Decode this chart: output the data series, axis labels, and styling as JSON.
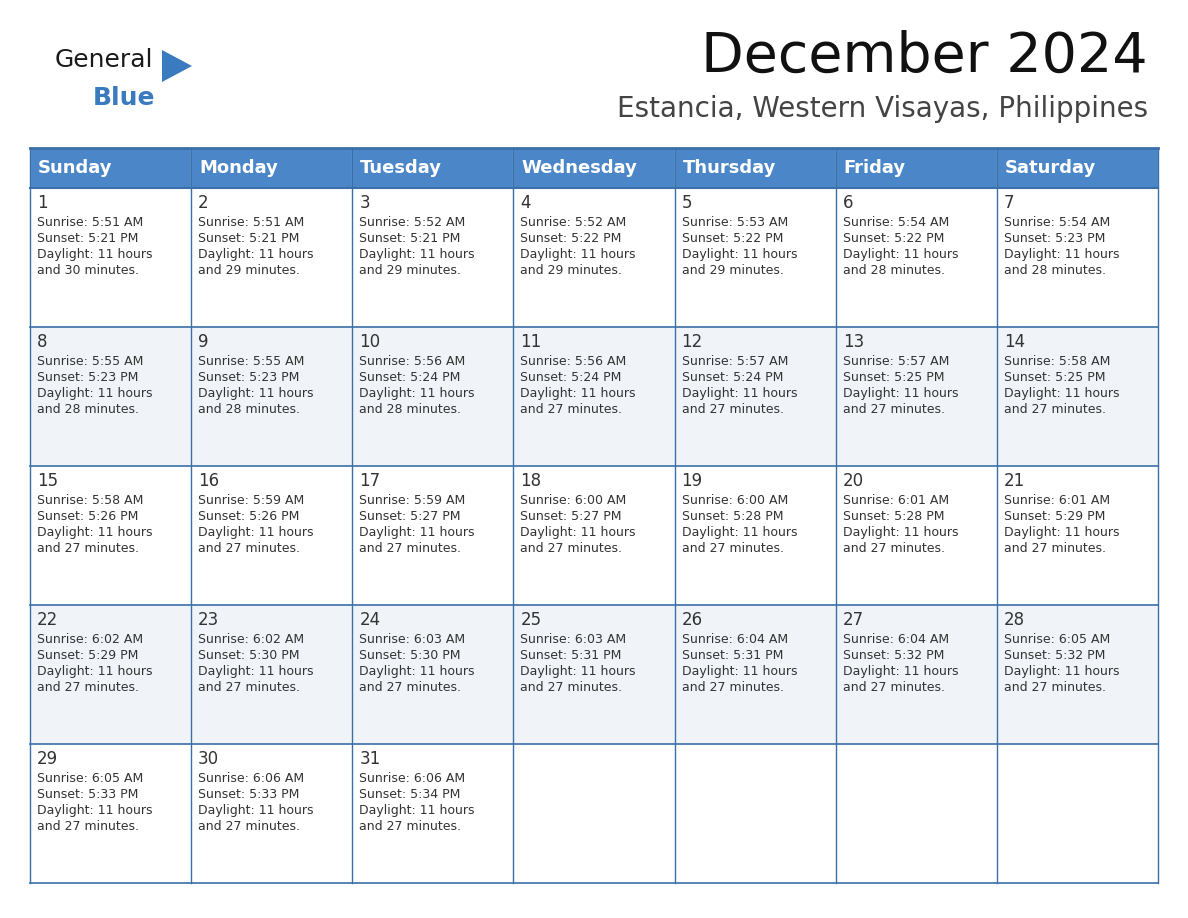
{
  "title": "December 2024",
  "subtitle": "Estancia, Western Visayas, Philippines",
  "header_color": "#4a86c8",
  "header_text_color": "#ffffff",
  "cell_bg_color": "#ffffff",
  "alt_cell_bg_color": "#f0f4f8",
  "border_color": "#3a6fa8",
  "text_color": "#333333",
  "day_headers": [
    "Sunday",
    "Monday",
    "Tuesday",
    "Wednesday",
    "Thursday",
    "Friday",
    "Saturday"
  ],
  "days": [
    {
      "day": 1,
      "col": 0,
      "row": 0,
      "sunrise": "5:51 AM",
      "sunset": "5:21 PM",
      "daylight_h": "11 hours",
      "daylight_m": "30 minutes."
    },
    {
      "day": 2,
      "col": 1,
      "row": 0,
      "sunrise": "5:51 AM",
      "sunset": "5:21 PM",
      "daylight_h": "11 hours",
      "daylight_m": "29 minutes."
    },
    {
      "day": 3,
      "col": 2,
      "row": 0,
      "sunrise": "5:52 AM",
      "sunset": "5:21 PM",
      "daylight_h": "11 hours",
      "daylight_m": "29 minutes."
    },
    {
      "day": 4,
      "col": 3,
      "row": 0,
      "sunrise": "5:52 AM",
      "sunset": "5:22 PM",
      "daylight_h": "11 hours",
      "daylight_m": "29 minutes."
    },
    {
      "day": 5,
      "col": 4,
      "row": 0,
      "sunrise": "5:53 AM",
      "sunset": "5:22 PM",
      "daylight_h": "11 hours",
      "daylight_m": "29 minutes."
    },
    {
      "day": 6,
      "col": 5,
      "row": 0,
      "sunrise": "5:54 AM",
      "sunset": "5:22 PM",
      "daylight_h": "11 hours",
      "daylight_m": "28 minutes."
    },
    {
      "day": 7,
      "col": 6,
      "row": 0,
      "sunrise": "5:54 AM",
      "sunset": "5:23 PM",
      "daylight_h": "11 hours",
      "daylight_m": "28 minutes."
    },
    {
      "day": 8,
      "col": 0,
      "row": 1,
      "sunrise": "5:55 AM",
      "sunset": "5:23 PM",
      "daylight_h": "11 hours",
      "daylight_m": "28 minutes."
    },
    {
      "day": 9,
      "col": 1,
      "row": 1,
      "sunrise": "5:55 AM",
      "sunset": "5:23 PM",
      "daylight_h": "11 hours",
      "daylight_m": "28 minutes."
    },
    {
      "day": 10,
      "col": 2,
      "row": 1,
      "sunrise": "5:56 AM",
      "sunset": "5:24 PM",
      "daylight_h": "11 hours",
      "daylight_m": "28 minutes."
    },
    {
      "day": 11,
      "col": 3,
      "row": 1,
      "sunrise": "5:56 AM",
      "sunset": "5:24 PM",
      "daylight_h": "11 hours",
      "daylight_m": "27 minutes."
    },
    {
      "day": 12,
      "col": 4,
      "row": 1,
      "sunrise": "5:57 AM",
      "sunset": "5:24 PM",
      "daylight_h": "11 hours",
      "daylight_m": "27 minutes."
    },
    {
      "day": 13,
      "col": 5,
      "row": 1,
      "sunrise": "5:57 AM",
      "sunset": "5:25 PM",
      "daylight_h": "11 hours",
      "daylight_m": "27 minutes."
    },
    {
      "day": 14,
      "col": 6,
      "row": 1,
      "sunrise": "5:58 AM",
      "sunset": "5:25 PM",
      "daylight_h": "11 hours",
      "daylight_m": "27 minutes."
    },
    {
      "day": 15,
      "col": 0,
      "row": 2,
      "sunrise": "5:58 AM",
      "sunset": "5:26 PM",
      "daylight_h": "11 hours",
      "daylight_m": "27 minutes."
    },
    {
      "day": 16,
      "col": 1,
      "row": 2,
      "sunrise": "5:59 AM",
      "sunset": "5:26 PM",
      "daylight_h": "11 hours",
      "daylight_m": "27 minutes."
    },
    {
      "day": 17,
      "col": 2,
      "row": 2,
      "sunrise": "5:59 AM",
      "sunset": "5:27 PM",
      "daylight_h": "11 hours",
      "daylight_m": "27 minutes."
    },
    {
      "day": 18,
      "col": 3,
      "row": 2,
      "sunrise": "6:00 AM",
      "sunset": "5:27 PM",
      "daylight_h": "11 hours",
      "daylight_m": "27 minutes."
    },
    {
      "day": 19,
      "col": 4,
      "row": 2,
      "sunrise": "6:00 AM",
      "sunset": "5:28 PM",
      "daylight_h": "11 hours",
      "daylight_m": "27 minutes."
    },
    {
      "day": 20,
      "col": 5,
      "row": 2,
      "sunrise": "6:01 AM",
      "sunset": "5:28 PM",
      "daylight_h": "11 hours",
      "daylight_m": "27 minutes."
    },
    {
      "day": 21,
      "col": 6,
      "row": 2,
      "sunrise": "6:01 AM",
      "sunset": "5:29 PM",
      "daylight_h": "11 hours",
      "daylight_m": "27 minutes."
    },
    {
      "day": 22,
      "col": 0,
      "row": 3,
      "sunrise": "6:02 AM",
      "sunset": "5:29 PM",
      "daylight_h": "11 hours",
      "daylight_m": "27 minutes."
    },
    {
      "day": 23,
      "col": 1,
      "row": 3,
      "sunrise": "6:02 AM",
      "sunset": "5:30 PM",
      "daylight_h": "11 hours",
      "daylight_m": "27 minutes."
    },
    {
      "day": 24,
      "col": 2,
      "row": 3,
      "sunrise": "6:03 AM",
      "sunset": "5:30 PM",
      "daylight_h": "11 hours",
      "daylight_m": "27 minutes."
    },
    {
      "day": 25,
      "col": 3,
      "row": 3,
      "sunrise": "6:03 AM",
      "sunset": "5:31 PM",
      "daylight_h": "11 hours",
      "daylight_m": "27 minutes."
    },
    {
      "day": 26,
      "col": 4,
      "row": 3,
      "sunrise": "6:04 AM",
      "sunset": "5:31 PM",
      "daylight_h": "11 hours",
      "daylight_m": "27 minutes."
    },
    {
      "day": 27,
      "col": 5,
      "row": 3,
      "sunrise": "6:04 AM",
      "sunset": "5:32 PM",
      "daylight_h": "11 hours",
      "daylight_m": "27 minutes."
    },
    {
      "day": 28,
      "col": 6,
      "row": 3,
      "sunrise": "6:05 AM",
      "sunset": "5:32 PM",
      "daylight_h": "11 hours",
      "daylight_m": "27 minutes."
    },
    {
      "day": 29,
      "col": 0,
      "row": 4,
      "sunrise": "6:05 AM",
      "sunset": "5:33 PM",
      "daylight_h": "11 hours",
      "daylight_m": "27 minutes."
    },
    {
      "day": 30,
      "col": 1,
      "row": 4,
      "sunrise": "6:06 AM",
      "sunset": "5:33 PM",
      "daylight_h": "11 hours",
      "daylight_m": "27 minutes."
    },
    {
      "day": 31,
      "col": 2,
      "row": 4,
      "sunrise": "6:06 AM",
      "sunset": "5:34 PM",
      "daylight_h": "11 hours",
      "daylight_m": "27 minutes."
    }
  ],
  "logo_color_general": "#1a1a1a",
  "logo_color_blue": "#3a7abf",
  "logo_triangle_color": "#3a7abf",
  "title_fontsize": 40,
  "subtitle_fontsize": 20,
  "header_fontsize": 13,
  "day_num_fontsize": 12,
  "cell_text_fontsize": 9
}
